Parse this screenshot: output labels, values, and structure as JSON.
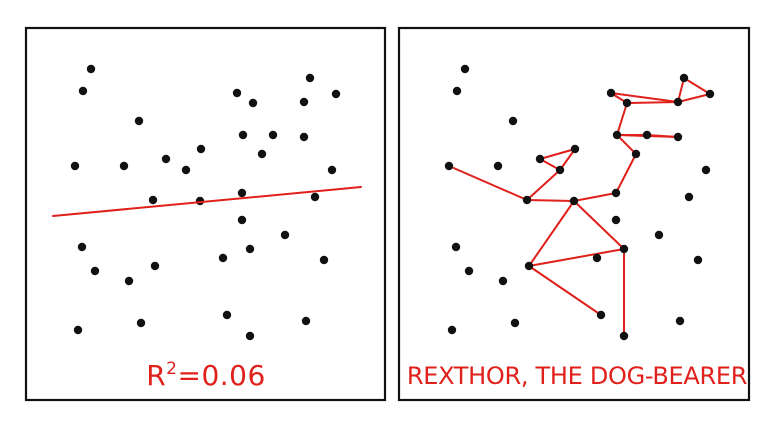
{
  "panels": [
    {
      "caption_main": "R",
      "caption_sup": "2",
      "caption_rest": "=0.06"
    },
    {
      "caption": "REXTHOR, THE DOG-BEARER"
    }
  ],
  "colors": {
    "ink": "#111111",
    "red": "#e0201b",
    "background": "#ffffff"
  }
}
